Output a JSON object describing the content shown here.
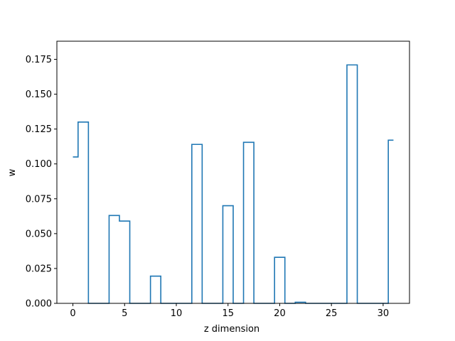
{
  "chart_data": {
    "type": "step",
    "xlabel": "z dimension",
    "ylabel": "w",
    "xlim": [
      -1.55,
      32.55
    ],
    "ylim": [
      0,
      0.188
    ],
    "x_ticks": [
      0,
      5,
      10,
      15,
      20,
      25,
      30
    ],
    "y_ticks": [
      0.0,
      0.025,
      0.05,
      0.075,
      0.1,
      0.125,
      0.15,
      0.175
    ],
    "y_tick_labels": [
      "0.000",
      "0.025",
      "0.050",
      "0.075",
      "0.100",
      "0.125",
      "0.150",
      "0.175"
    ],
    "grid": false,
    "line_color": "#1f77b4",
    "x": [
      0,
      1,
      2,
      3,
      4,
      5,
      6,
      7,
      8,
      9,
      10,
      11,
      12,
      13,
      14,
      15,
      16,
      17,
      18,
      19,
      20,
      21,
      22,
      23,
      24,
      25,
      26,
      27,
      28,
      29,
      30,
      31
    ],
    "values": [
      0.105,
      0.13,
      0,
      0,
      0.063,
      0.059,
      0,
      0,
      0.0195,
      0,
      0,
      0,
      0.114,
      0,
      0,
      0.07,
      0,
      0.1155,
      0,
      0,
      0.033,
      0,
      0.0008,
      0,
      0,
      0,
      0,
      0.171,
      0,
      0,
      0,
      0.117
    ]
  }
}
